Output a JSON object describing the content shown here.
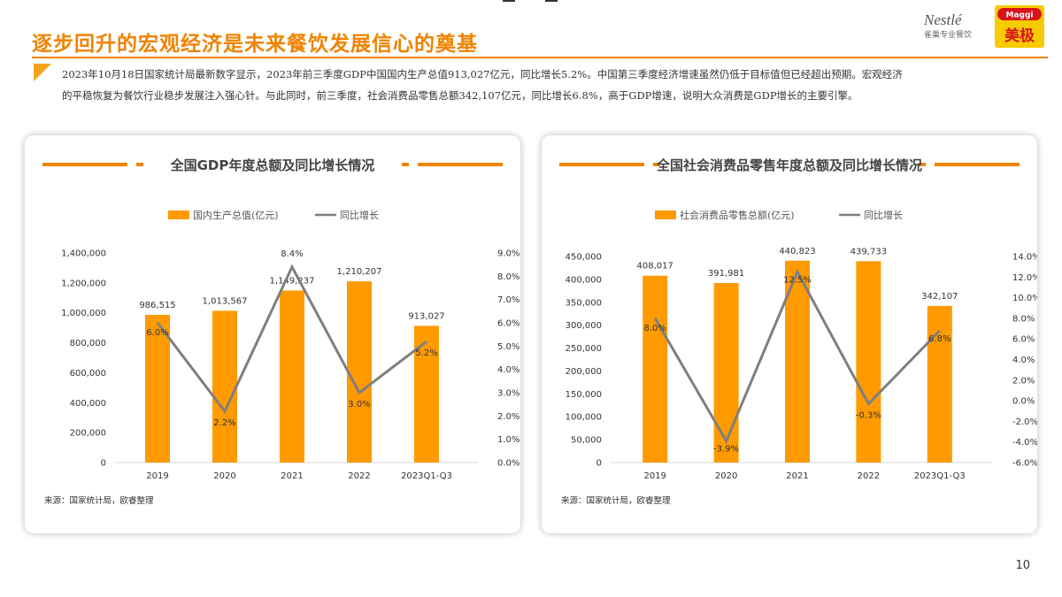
{
  "page": {
    "title": "逐步回升的宏观经济是未来餐饮发展信心的奠基",
    "intro_line1": "2023年10月18日国家统计局最新数字显示，2023年前三季度GDP中国国内生产总值913,027亿元，同比增长5.2%。中国第三季度经济增速虽然仍低于目标值但已经超出预期。宏观经济",
    "intro_line2": "的平稳恢复为餐饮行业稳步发展注入强心针。与此同时，前三季度，社会消费品零售总额342,107亿元，同比增长6.8%，高于GDP增速，说明大众消费是GDP增长的主要引擎。",
    "page_number": "10",
    "logo_nestle_text": "Nestlé",
    "logo_nestle_sub": "雀巢专业餐饮",
    "logo_maggi_text": "Maggi",
    "logo_maggi_cn": "美极"
  },
  "colors": {
    "accent": "#f08300",
    "bar": "#ff9a00",
    "line": "#7f7f7f",
    "tri": "#f7a21b",
    "maggi": "#f7cb00",
    "maggi_red": "#d7141a"
  },
  "chart_data": [
    {
      "type": "bar",
      "title": "全国GDP年度总额及同比增长情况",
      "categories": [
        "2019",
        "2020",
        "2021",
        "2022",
        "2023Q1-Q3"
      ],
      "series": [
        {
          "name": "国内生产总值(亿元)",
          "type": "bar",
          "axis": "left",
          "values": [
            986515,
            1013567,
            1149237,
            1210207,
            913027
          ],
          "labels": [
            "986,515",
            "1,013,567",
            "1,149,237",
            "1,210,207",
            "913,027"
          ]
        },
        {
          "name": "同比增长",
          "type": "line",
          "axis": "right",
          "values": [
            6.0,
            2.2,
            8.4,
            3.0,
            5.2
          ],
          "labels": [
            "6.0%",
            "2.2%",
            "8.4%",
            "3.0%",
            "5.2%"
          ]
        }
      ],
      "ylim": [
        0,
        1400000
      ],
      "yticks": [
        "0",
        "200,000",
        "400,000",
        "600,000",
        "800,000",
        "1,000,000",
        "1,200,000",
        "1,400,000"
      ],
      "y2lim": [
        0,
        9
      ],
      "y2ticks": [
        "0.0%",
        "1.0%",
        "2.0%",
        "3.0%",
        "4.0%",
        "5.0%",
        "6.0%",
        "7.0%",
        "8.0%",
        "9.0%"
      ],
      "legend": "top",
      "source": "来源：国家统计局，欧睿整理"
    },
    {
      "type": "bar",
      "title": "全国社会消费品零售年度总额及同比增长情况",
      "categories": [
        "2019",
        "2020",
        "2021",
        "2022",
        "2023Q1-Q3"
      ],
      "series": [
        {
          "name": "社会消费品零售总额(亿元)",
          "type": "bar",
          "axis": "left",
          "values": [
            408017,
            391981,
            440823,
            439733,
            342107
          ],
          "labels": [
            "408,017",
            "391,981",
            "440,823",
            "439,733",
            "342,107"
          ]
        },
        {
          "name": "同比增长",
          "type": "line",
          "axis": "right",
          "values": [
            8.0,
            -3.9,
            12.5,
            -0.3,
            6.8
          ],
          "labels": [
            "8.0%",
            "-3.9%",
            "12.5%",
            "-0.3%",
            "6.8%"
          ]
        }
      ],
      "ylim": [
        0,
        450000
      ],
      "yticks": [
        "0",
        "50,000",
        "100,000",
        "150,000",
        "200,000",
        "250,000",
        "300,000",
        "350,000",
        "400,000",
        "450,000"
      ],
      "y2lim": [
        -6,
        14
      ],
      "y2ticks": [
        "-6.0%",
        "-4.0%",
        "-2.0%",
        "0.0%",
        "2.0%",
        "4.0%",
        "6.0%",
        "8.0%",
        "10.0%",
        "12.0%",
        "14.0%"
      ],
      "legend": "top",
      "source": "来源：国家统计局，欧睿整理"
    }
  ]
}
